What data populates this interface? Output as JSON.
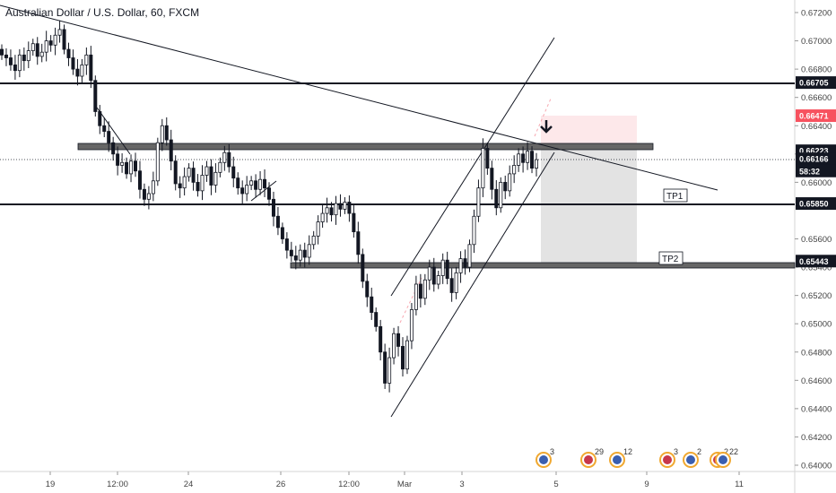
{
  "header": {
    "title": "Australian Dollar / U.S. Dollar, 60, FXCM"
  },
  "colors": {
    "up": "#131722",
    "down": "#131722",
    "badge_dark": "#131722",
    "badge_red": "#f7525f",
    "stop_zone": "#fde8ea",
    "target_zone": "#e3e3e3",
    "zone_bar": "#666666"
  },
  "chart_data": {
    "type": "candlestick",
    "title": "Australian Dollar / U.S. Dollar, 60, FXCM",
    "ylim": [
      0.639,
      0.673
    ],
    "y_ticks": [
      "0.67200",
      "0.67000",
      "0.66800",
      "0.66600",
      "0.66400",
      "0.66200",
      "0.66000",
      "0.65600",
      "0.65400",
      "0.65200",
      "0.65000",
      "0.64800",
      "0.64600",
      "0.64400",
      "0.64200",
      "0.64000"
    ],
    "x_ticks": [
      "19",
      "12:00",
      "24",
      "26",
      "12:00",
      "Mar",
      "3",
      "5",
      "9",
      "11"
    ],
    "price_badges": [
      {
        "label": "0.66705",
        "value": 0.66705,
        "style": "dark"
      },
      {
        "label": "0.66471",
        "value": 0.66471,
        "style": "red"
      },
      {
        "label": "0.66223",
        "value": 0.66223,
        "style": "dark"
      },
      {
        "label": "0.66166",
        "value": 0.66166,
        "style": "dark"
      },
      {
        "label": "58:32",
        "value": 0.6608,
        "style": "dark"
      },
      {
        "label": "0.65850",
        "value": 0.6585,
        "style": "dark"
      },
      {
        "label": "0.65443",
        "value": 0.65443,
        "style": "dark"
      }
    ],
    "horizontal_levels": [
      0.66705,
      0.6585
    ],
    "zones": [
      0.66223,
      0.65443
    ],
    "targets": [
      {
        "label": "TP1",
        "value": 0.6585
      },
      {
        "label": "TP2",
        "value": 0.65443
      }
    ],
    "trade": {
      "entry": 0.66223,
      "stop": 0.66471,
      "target": 0.65443
    },
    "current_price": 0.66166,
    "events": [
      "3",
      "29",
      "12",
      "3",
      "2",
      "2",
      "22"
    ],
    "series": [
      {
        "name": "close",
        "values": [
          0.669,
          0.6688,
          0.6683,
          0.6679,
          0.669,
          0.6686,
          0.6693,
          0.6698,
          0.6689,
          0.6692,
          0.67,
          0.6697,
          0.6704,
          0.6708,
          0.6694,
          0.6688,
          0.668,
          0.6675,
          0.6683,
          0.669,
          0.6672,
          0.665,
          0.664,
          0.6636,
          0.6628,
          0.662,
          0.6612,
          0.6614,
          0.6606,
          0.6615,
          0.6608,
          0.6595,
          0.6588,
          0.6592,
          0.6601,
          0.6628,
          0.664,
          0.663,
          0.6615,
          0.6599,
          0.6596,
          0.6604,
          0.661,
          0.66,
          0.6594,
          0.6605,
          0.6611,
          0.6598,
          0.6607,
          0.6614,
          0.6621,
          0.6611,
          0.6603,
          0.6596,
          0.6592,
          0.6598,
          0.6601,
          0.6595,
          0.6602,
          0.6596,
          0.6588,
          0.6576,
          0.6568,
          0.656,
          0.6552,
          0.6548,
          0.6545,
          0.6552,
          0.6547,
          0.6556,
          0.6562,
          0.6572,
          0.6578,
          0.6582,
          0.6577,
          0.6585,
          0.6581,
          0.6586,
          0.6578,
          0.6565,
          0.6549,
          0.653,
          0.6519,
          0.6508,
          0.6498,
          0.648,
          0.6458,
          0.6476,
          0.6493,
          0.6484,
          0.6468,
          0.6488,
          0.651,
          0.6528,
          0.6518,
          0.6531,
          0.654,
          0.6528,
          0.6534,
          0.6545,
          0.6532,
          0.6522,
          0.6536,
          0.6546,
          0.654,
          0.6556,
          0.6576,
          0.6596,
          0.6624,
          0.661,
          0.6595,
          0.6582,
          0.66,
          0.6594,
          0.6606,
          0.6612,
          0.662,
          0.6614,
          0.6622,
          0.661,
          0.6616
        ]
      }
    ]
  },
  "labels": {
    "tp1": "TP1",
    "tp2": "TP2"
  }
}
